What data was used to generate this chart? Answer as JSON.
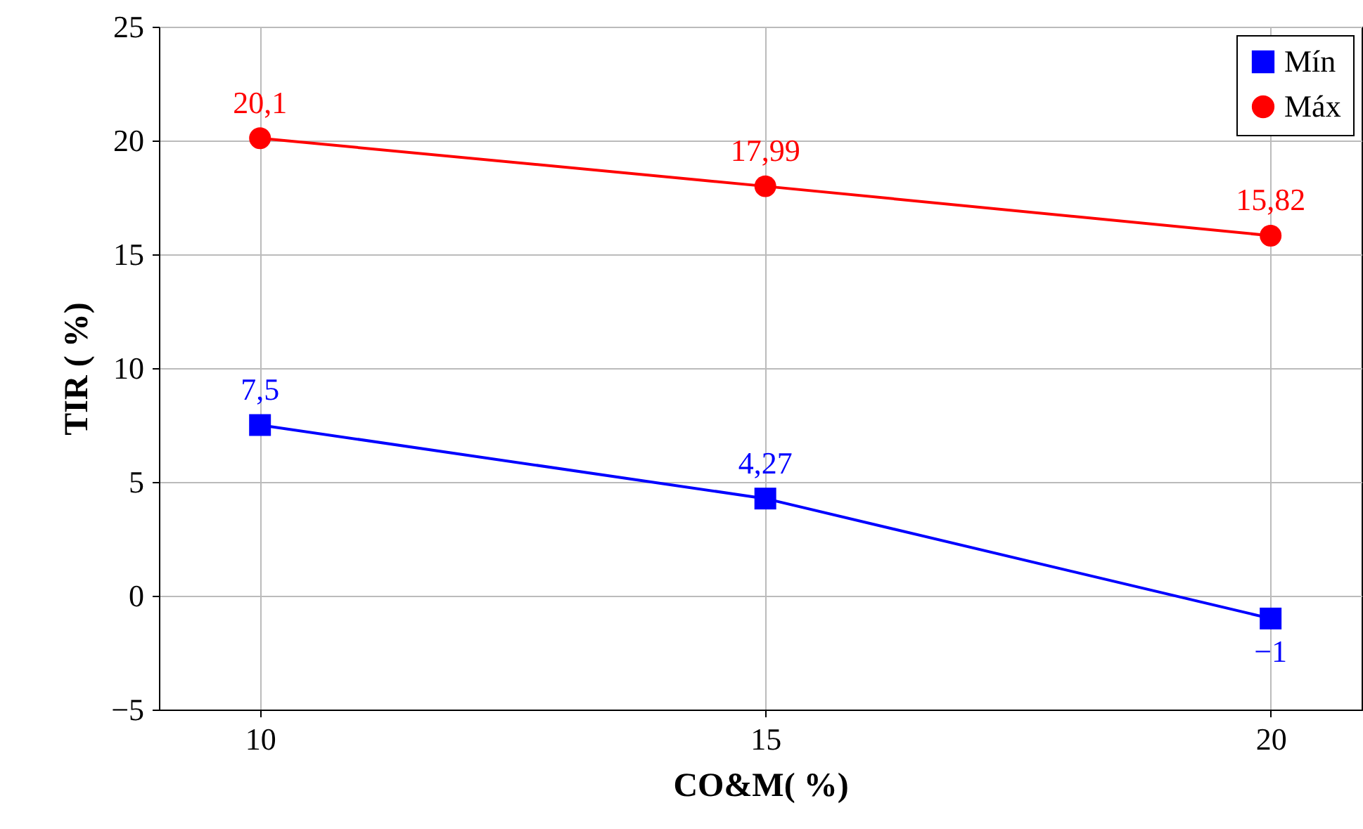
{
  "chart_data": {
    "type": "line",
    "xlabel": "CO&M( %)",
    "ylabel": "TIR ( %)",
    "x": [
      10,
      15,
      20
    ],
    "series": [
      {
        "name": "Mín",
        "color": "#0000ff",
        "marker": "square",
        "values": [
          7.5,
          4.27,
          -1
        ],
        "value_labels": [
          "7,5",
          "4,27",
          "−1"
        ]
      },
      {
        "name": "Máx",
        "color": "#ff0000",
        "marker": "circle",
        "values": [
          20.1,
          17.99,
          15.82
        ],
        "value_labels": [
          "20,1",
          "17,99",
          "15,82"
        ]
      }
    ],
    "xlim": [
      9,
      20.9
    ],
    "xticks": [
      10,
      15,
      20
    ],
    "ylim": [
      -5,
      25
    ],
    "yticks": [
      -5,
      0,
      5,
      10,
      15,
      20,
      25
    ],
    "grid": true,
    "legend": "top right",
    "line_style": "solid"
  }
}
